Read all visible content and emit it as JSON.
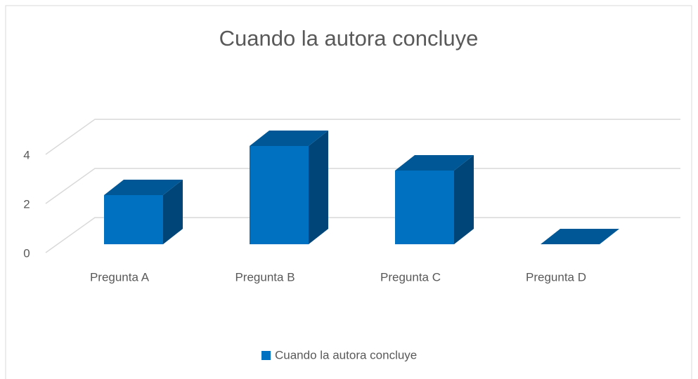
{
  "chart_data": {
    "type": "bar",
    "title": "Cuando la autora concluye",
    "categories": [
      "Pregunta A",
      "Pregunta B",
      "Pregunta C",
      "Pregunta D"
    ],
    "series": [
      {
        "name": "Cuando la autora concluye",
        "color": "#0070c0",
        "values": [
          2,
          4,
          3,
          0
        ]
      }
    ],
    "ylim": [
      0,
      4
    ],
    "yticks": [
      0,
      2,
      4
    ],
    "grid": true,
    "legend": "bottom"
  }
}
